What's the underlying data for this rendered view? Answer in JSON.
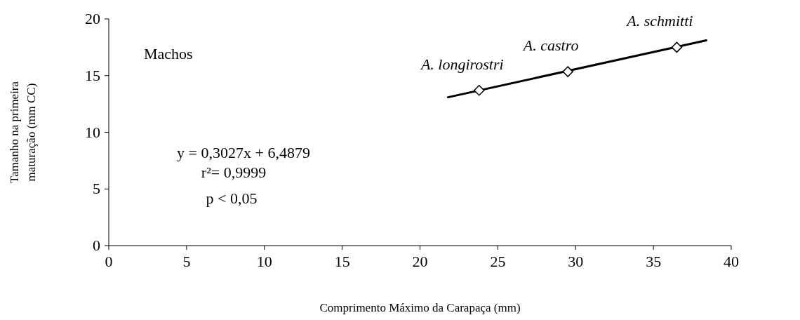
{
  "chart_data": {
    "type": "scatter",
    "xlabel": "Comprimento Máximo da Carapaça (mm)",
    "ylabel": "Tamanho na primeira maturação (mm CC)",
    "xlim": [
      0,
      40
    ],
    "xticks": [
      0,
      5,
      10,
      15,
      20,
      25,
      30,
      35,
      40
    ],
    "ylim": [
      0,
      20
    ],
    "yticks": [
      0,
      5,
      10,
      15,
      20
    ],
    "grid": false,
    "series": [
      {
        "type": "line",
        "color": "#000000",
        "x": [
          21.8,
          38.4
        ],
        "values": [
          13.09,
          18.11
        ],
        "marker": "none",
        "line_style": "solid"
      },
      {
        "type": "scatter",
        "color": "#000000",
        "x": [
          23.8,
          29.5,
          36.5
        ],
        "values": [
          13.7,
          15.35,
          17.5
        ],
        "marker": "diamond"
      }
    ],
    "annotations": [
      "Machos",
      "y = 0,3027x + 6,4879",
      "r²= 0,9999",
      "p < 0,05",
      {
        "text": "A. longirostri",
        "x": 23.8,
        "y": 13.7
      },
      {
        "text": "A. castro",
        "x": 29.5,
        "y": 15.35
      },
      {
        "text": "A. schmitti",
        "x": 36.5,
        "y": 17.5
      }
    ]
  }
}
